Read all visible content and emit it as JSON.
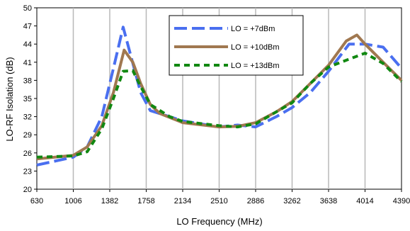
{
  "chart_data": {
    "type": "line",
    "title": "",
    "xlabel": "LO Frequency (MHz)",
    "ylabel": "LO-RF Isolation (dB)",
    "xlim": [
      630,
      4390
    ],
    "ylim": [
      20,
      50
    ],
    "x_ticks": [
      630,
      1006,
      1382,
      1758,
      2134,
      2510,
      2886,
      3262,
      3638,
      4014,
      4390
    ],
    "y_ticks": [
      20,
      23,
      26,
      29,
      32,
      35,
      38,
      41,
      44,
      47,
      50
    ],
    "grid": "vertical",
    "legend_position": "top-right",
    "series": [
      {
        "name": "LO = +7dBm",
        "color": "#4a6ff0",
        "dash": "long-dash",
        "points": [
          [
            630,
            24
          ],
          [
            1006,
            25.3
          ],
          [
            1150,
            27
          ],
          [
            1300,
            32
          ],
          [
            1420,
            40
          ],
          [
            1520,
            46.8
          ],
          [
            1600,
            42
          ],
          [
            1700,
            36
          ],
          [
            1800,
            33
          ],
          [
            2000,
            32
          ],
          [
            2134,
            31.3
          ],
          [
            2510,
            30.3
          ],
          [
            2700,
            30.6
          ],
          [
            2886,
            30.3
          ],
          [
            3100,
            32
          ],
          [
            3262,
            33.5
          ],
          [
            3450,
            36
          ],
          [
            3638,
            39.5
          ],
          [
            3850,
            44
          ],
          [
            4014,
            44
          ],
          [
            4200,
            43.5
          ],
          [
            4390,
            40
          ]
        ]
      },
      {
        "name": "LO = +10dBm",
        "color": "#a07850",
        "dash": "solid",
        "points": [
          [
            630,
            25
          ],
          [
            1006,
            25.6
          ],
          [
            1150,
            27
          ],
          [
            1300,
            30.5
          ],
          [
            1420,
            36
          ],
          [
            1530,
            43
          ],
          [
            1620,
            41
          ],
          [
            1700,
            37.5
          ],
          [
            1800,
            34
          ],
          [
            1900,
            32.5
          ],
          [
            2134,
            31
          ],
          [
            2510,
            30.3
          ],
          [
            2700,
            30.4
          ],
          [
            2886,
            31
          ],
          [
            3100,
            32.8
          ],
          [
            3262,
            34.5
          ],
          [
            3450,
            37.5
          ],
          [
            3638,
            40.5
          ],
          [
            3820,
            44.5
          ],
          [
            3930,
            45.5
          ],
          [
            4014,
            44
          ],
          [
            4200,
            41
          ],
          [
            4390,
            38
          ]
        ]
      },
      {
        "name": "LO = +13dBm",
        "color": "#118811",
        "dash": "short-dash",
        "points": [
          [
            630,
            25.3
          ],
          [
            1006,
            25.5
          ],
          [
            1150,
            26.2
          ],
          [
            1300,
            30
          ],
          [
            1420,
            35
          ],
          [
            1520,
            39.5
          ],
          [
            1620,
            39.6
          ],
          [
            1700,
            37
          ],
          [
            1800,
            34
          ],
          [
            2000,
            32
          ],
          [
            2134,
            31.2
          ],
          [
            2510,
            30.5
          ],
          [
            2700,
            30.3
          ],
          [
            2886,
            30.8
          ],
          [
            3100,
            32.8
          ],
          [
            3262,
            34.3
          ],
          [
            3450,
            37.5
          ],
          [
            3638,
            40.2
          ],
          [
            3850,
            41.5
          ],
          [
            4014,
            42.5
          ],
          [
            4200,
            40.8
          ],
          [
            4390,
            37.8
          ]
        ]
      }
    ]
  }
}
